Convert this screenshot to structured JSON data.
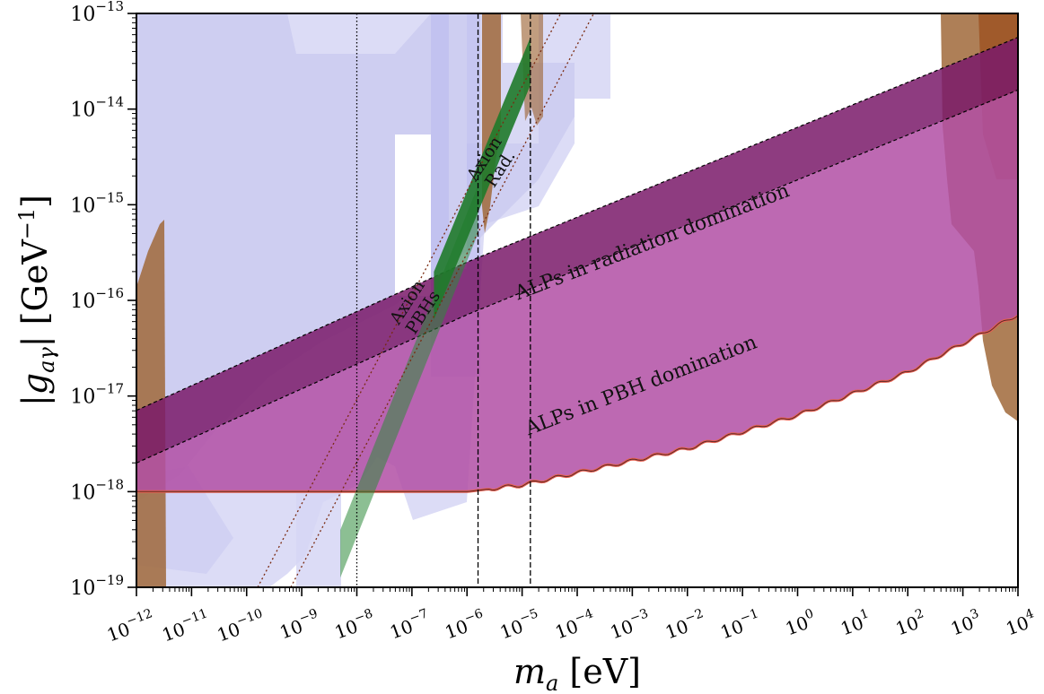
{
  "chart_data": {
    "type": "area",
    "title": "",
    "xlabel": "m_a [eV]",
    "ylabel": "|g_aγ| [GeV^-1]",
    "xscale": "log",
    "yscale": "log",
    "xlim_log10": [
      -12,
      4
    ],
    "ylim_log10": [
      -19,
      -13
    ],
    "x_ticks": [
      {
        "base": "10",
        "exp": "−12"
      },
      {
        "base": "10",
        "exp": "−11"
      },
      {
        "base": "10",
        "exp": "−10"
      },
      {
        "base": "10",
        "exp": "−9"
      },
      {
        "base": "10",
        "exp": "−8"
      },
      {
        "base": "10",
        "exp": "−7"
      },
      {
        "base": "10",
        "exp": "−6"
      },
      {
        "base": "10",
        "exp": "−5"
      },
      {
        "base": "10",
        "exp": "−4"
      },
      {
        "base": "10",
        "exp": "−3"
      },
      {
        "base": "10",
        "exp": "−2"
      },
      {
        "base": "10",
        "exp": "−1"
      },
      {
        "base": "10",
        "exp": "0"
      },
      {
        "base": "10",
        "exp": "1"
      },
      {
        "base": "10",
        "exp": "2"
      },
      {
        "base": "10",
        "exp": "3"
      },
      {
        "base": "10",
        "exp": "4"
      }
    ],
    "y_ticks": [
      {
        "base": "10",
        "exp": "−19"
      },
      {
        "base": "10",
        "exp": "−18"
      },
      {
        "base": "10",
        "exp": "−17"
      },
      {
        "base": "10",
        "exp": "−16"
      },
      {
        "base": "10",
        "exp": "−15"
      },
      {
        "base": "10",
        "exp": "−14"
      },
      {
        "base": "10",
        "exp": "−13"
      }
    ],
    "grid": false,
    "colors": {
      "constraint_fill": "#c9c9f2",
      "constraint_dark": "#7b7be0",
      "astro_brown": "#a0683a",
      "radiation_band": "#7a1a6a",
      "pbh_band": "#b24fa4",
      "axion_band": "#2e8a3a",
      "red_edge": "#e8604f"
    },
    "vertical_lines": [
      {
        "x_log10": -8.0,
        "style": "dotted"
      },
      {
        "x_log10": -5.8,
        "style": "dashed"
      },
      {
        "x_log10": -4.85,
        "style": "dashed"
      }
    ],
    "regions": [
      {
        "name": "ALPs in radiation domination",
        "upper_log10": [
          [
            -12,
            -17.15
          ],
          [
            -6,
            -15.6
          ],
          [
            4,
            -13.25
          ]
        ],
        "lower_log10": [
          [
            -12,
            -17.7
          ],
          [
            -6,
            -16.15
          ],
          [
            4,
            -13.8
          ]
        ]
      },
      {
        "name": "ALPs in PBH domination",
        "upper_log10": [
          [
            -12,
            -17.7
          ],
          [
            -6,
            -16.15
          ],
          [
            4,
            -13.8
          ]
        ],
        "lower_log10": [
          [
            -12,
            -18.0
          ],
          [
            -6,
            -18.0
          ],
          [
            -5,
            -17.93
          ],
          [
            -2,
            -17.55
          ],
          [
            0,
            -17.2
          ],
          [
            2,
            -16.75
          ],
          [
            4,
            -16.15
          ]
        ]
      },
      {
        "name": "Axion PBHs",
        "lower_edge_log10": [
          [
            -8.3,
            -18.9
          ],
          [
            -5.8,
            -15.3
          ]
        ],
        "upper_edge_log10": [
          [
            -8.3,
            -18.4
          ],
          [
            -5.8,
            -14.8
          ]
        ]
      },
      {
        "name": "Axion Rad.",
        "lower_edge_log10": [
          [
            -6.6,
            -16.2
          ],
          [
            -4.85,
            -13.75
          ]
        ],
        "upper_edge_log10": [
          [
            -6.6,
            -15.7
          ],
          [
            -4.85,
            -13.25
          ]
        ]
      }
    ],
    "annotations": [
      {
        "text": "ALPs in radiation domination"
      },
      {
        "text": "ALPs in PBH domination"
      },
      {
        "lines": [
          "Axion",
          "PBHs"
        ]
      },
      {
        "lines": [
          "Axion",
          "Rad."
        ]
      }
    ]
  }
}
